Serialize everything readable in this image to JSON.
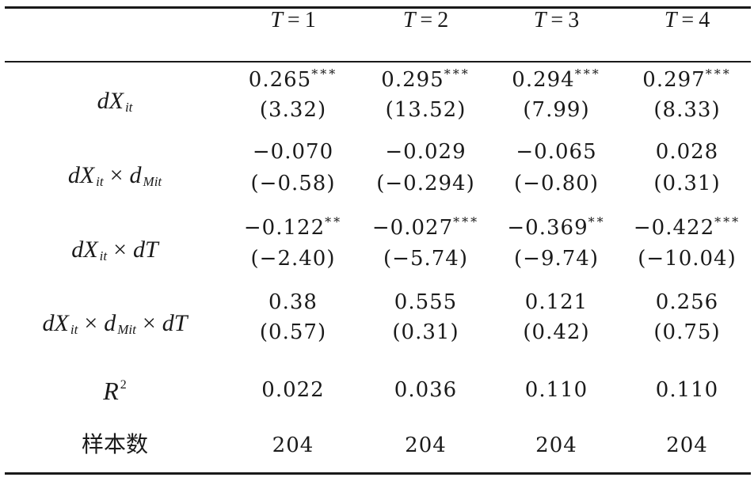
{
  "table": {
    "headers": [
      {
        "var": "T",
        "eq": "=",
        "val": "1"
      },
      {
        "var": "T",
        "eq": "=",
        "val": "2"
      },
      {
        "var": "T",
        "eq": "=",
        "val": "3"
      },
      {
        "var": "T",
        "eq": "=",
        "val": "4"
      }
    ],
    "rows": [
      {
        "label": {
          "main": "dX",
          "sub": "it"
        },
        "coef": [
          {
            "value": "0.265",
            "stars": "***"
          },
          {
            "value": "0.295",
            "stars": "***"
          },
          {
            "value": "0.294",
            "stars": "***"
          },
          {
            "value": "0.297",
            "stars": "***"
          }
        ],
        "t": [
          "(3.32)",
          "(13.52)",
          "(7.99)",
          "(8.33)"
        ]
      },
      {
        "label": {
          "main": "dX",
          "sub": "it",
          "op": "×",
          "main2": "d",
          "sub2": "Mit"
        },
        "coef": [
          {
            "value": "−0.070",
            "stars": ""
          },
          {
            "value": "−0.029",
            "stars": ""
          },
          {
            "value": "−0.065",
            "stars": ""
          },
          {
            "value": "0.028",
            "stars": ""
          }
        ],
        "t": [
          "(−0.58)",
          "(−0.294)",
          "(−0.80)",
          "(0.31)"
        ]
      },
      {
        "label": {
          "main": "dX",
          "sub": "it",
          "op": "×",
          "main2": "dT"
        },
        "coef": [
          {
            "value": "−0.122",
            "stars": "**"
          },
          {
            "value": "−0.027",
            "stars": "***"
          },
          {
            "value": "−0.369",
            "stars": "**"
          },
          {
            "value": "−0.422",
            "stars": "***"
          }
        ],
        "t": [
          "(−2.40)",
          "(−5.74)",
          "(−9.74)",
          "(−10.04)"
        ]
      },
      {
        "label": {
          "main": "dX",
          "sub": "it",
          "op": "×",
          "main2": "d",
          "sub2": "Mit",
          "op2": "×",
          "main3": "dT"
        },
        "coef": [
          {
            "value": "0.38",
            "stars": ""
          },
          {
            "value": "0.555",
            "stars": ""
          },
          {
            "value": "0.121",
            "stars": ""
          },
          {
            "value": "0.256",
            "stars": ""
          }
        ],
        "t": [
          "(0.57)",
          "(0.31)",
          "(0.42)",
          "(0.75)"
        ]
      }
    ],
    "r2": {
      "main": "R",
      "sup": "2",
      "values": [
        "0.022",
        "0.036",
        "0.110",
        "0.110"
      ]
    },
    "n": {
      "label": "样本数",
      "values": [
        "204",
        "204",
        "204",
        "204"
      ]
    }
  }
}
